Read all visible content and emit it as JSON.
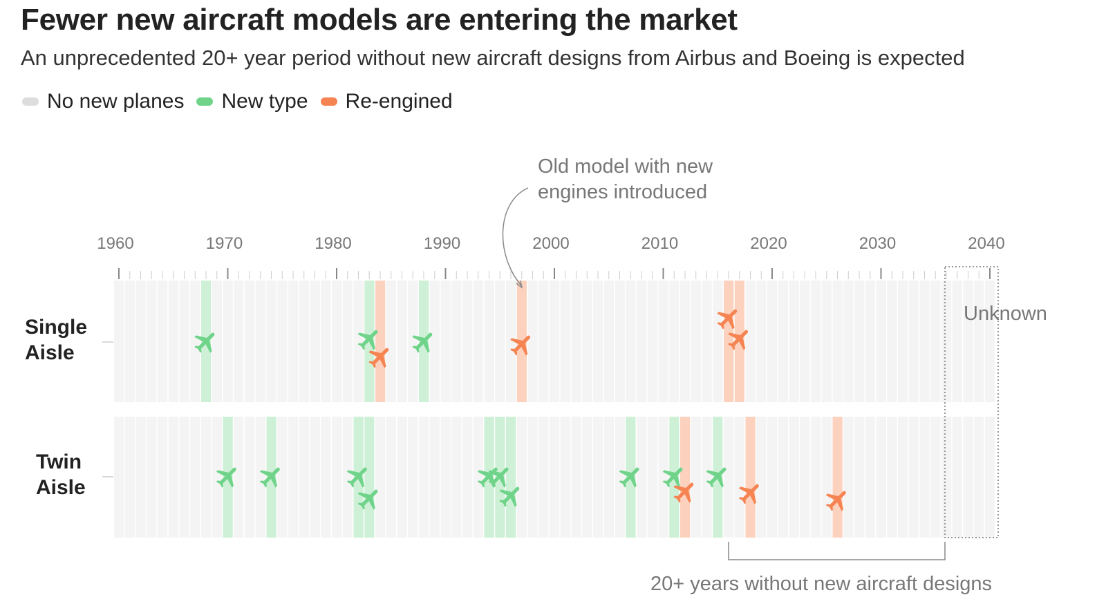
{
  "title": "Fewer new aircraft models are entering the market",
  "subtitle": "An unprecedented 20+ year period without new aircraft designs from Airbus and Boeing is expected",
  "legend": [
    {
      "label": "No new planes",
      "color": "#dddddd"
    },
    {
      "label": "New type",
      "color": "#6fd389"
    },
    {
      "label": "Re-engined",
      "color": "#f58452"
    }
  ],
  "colors": {
    "new_type": "#6fd389",
    "new_type_band": "#cdf0d6",
    "re_engined": "#f58452",
    "re_engined_band": "#fcd2bf",
    "empty_band": "#f4f4f4",
    "axis": "#999999",
    "annotation": "#777777"
  },
  "chart_data": {
    "type": "timeline",
    "x_ticks": [
      1960,
      1970,
      1980,
      1990,
      2000,
      2010,
      2020,
      2030,
      2040
    ],
    "xlim": [
      1960,
      2041
    ],
    "rows": [
      {
        "label_lines": [
          "Single",
          "Aisle"
        ],
        "events": [
          {
            "year": 1968,
            "kind": "new"
          },
          {
            "year": 1983,
            "kind": "new"
          },
          {
            "year": 1984,
            "kind": "re"
          },
          {
            "year": 1988,
            "kind": "new"
          },
          {
            "year": 1997,
            "kind": "re"
          },
          {
            "year": 2016,
            "kind": "re"
          },
          {
            "year": 2017,
            "kind": "re"
          }
        ]
      },
      {
        "label_lines": [
          "Twin",
          "Aisle"
        ],
        "events": [
          {
            "year": 1970,
            "kind": "new"
          },
          {
            "year": 1974,
            "kind": "new"
          },
          {
            "year": 1982,
            "kind": "new"
          },
          {
            "year": 1983,
            "kind": "new"
          },
          {
            "year": 1994,
            "kind": "new"
          },
          {
            "year": 1995,
            "kind": "new"
          },
          {
            "year": 1996,
            "kind": "new"
          },
          {
            "year": 2007,
            "kind": "new"
          },
          {
            "year": 2011,
            "kind": "new"
          },
          {
            "year": 2012,
            "kind": "re"
          },
          {
            "year": 2015,
            "kind": "new"
          },
          {
            "year": 2018,
            "kind": "re"
          },
          {
            "year": 2026,
            "kind": "re"
          }
        ]
      }
    ],
    "annotations": {
      "reengine_lines": [
        "Old model with new",
        "engines introduced"
      ],
      "reengine_year": 1997,
      "unknown_label": "Unknown",
      "unknown_from": 2036,
      "gap_label": "20+ years without new aircraft designs",
      "gap_from": 2016,
      "gap_to": 2036
    }
  }
}
